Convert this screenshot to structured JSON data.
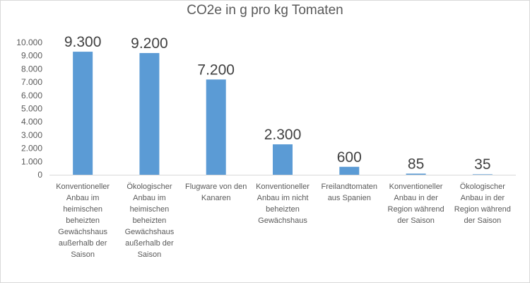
{
  "chart_data": {
    "type": "bar",
    "title": "CO2e in g pro kg Tomaten",
    "xlabel": "",
    "ylabel": "",
    "ylim": [
      0,
      10000
    ],
    "y_ticks": [
      "0",
      "1.000",
      "2.000",
      "3.000",
      "4.000",
      "5.000",
      "6.000",
      "7.000",
      "8.000",
      "9.000",
      "10.000"
    ],
    "grid": false,
    "legend": "none",
    "bar_color": "#5b9bd5",
    "categories": [
      "Konventioneller Anbau im heimischen beheizten Gewächshaus außerhalb der Saison",
      "Ökologischer Anbau im heimischen beheizten Gewächshaus außerhalb der Saison",
      "Flugware von den Kanaren",
      "Konventioneller Anbau im nicht beheizten Gewächshaus",
      "Freilandtomaten aus Spanien",
      "Konventioneller Anbau in der Region während der Saison",
      "Ökologischer Anbau in der Region während der Saison"
    ],
    "values": [
      9300,
      9200,
      7200,
      2300,
      600,
      85,
      35
    ],
    "data_labels": [
      "9.300",
      "9.200",
      "7.200",
      "2.300",
      "600",
      "85",
      "35"
    ]
  }
}
